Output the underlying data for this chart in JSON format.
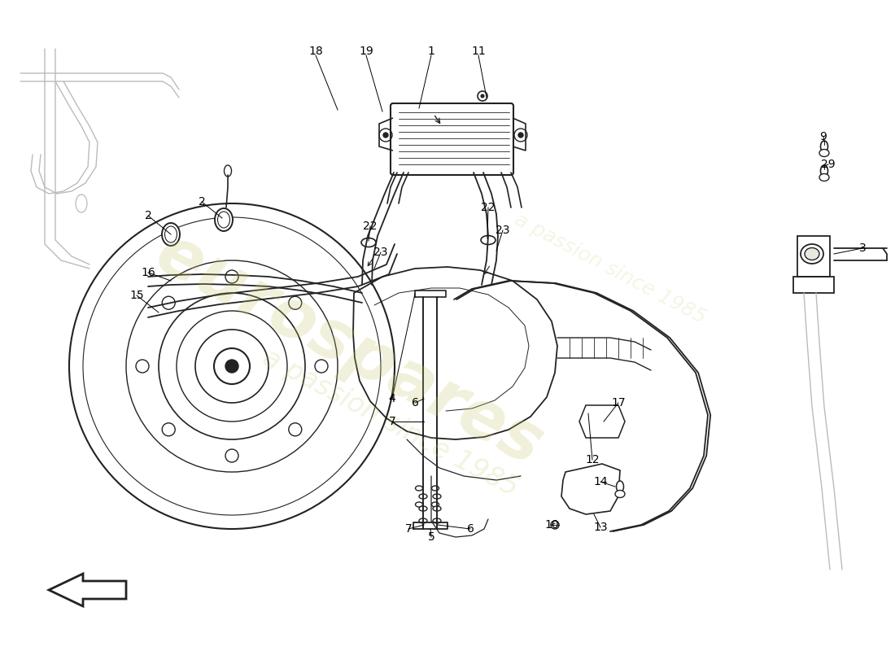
{
  "bg_color": "#ffffff",
  "line_color": "#222222",
  "light_gray": "#bbbbbb",
  "watermark1": "eurospares",
  "watermark2": "a passion since 1985",
  "fig_width": 11.0,
  "fig_height": 8.0,
  "top_labels": [
    [
      "18",
      388,
      63,
      415,
      135
    ],
    [
      "19",
      450,
      63,
      470,
      137
    ],
    [
      "1",
      530,
      63,
      515,
      133
    ],
    [
      "11",
      588,
      63,
      598,
      120
    ]
  ],
  "other_labels": [
    [
      "2",
      182,
      265,
      210,
      288
    ],
    [
      "2",
      248,
      248,
      273,
      268
    ],
    [
      "16",
      182,
      335,
      210,
      345
    ],
    [
      "15",
      168,
      363,
      195,
      384
    ],
    [
      "22",
      455,
      278,
      453,
      296
    ],
    [
      "23",
      468,
      310,
      460,
      330
    ],
    [
      "22",
      600,
      255,
      599,
      293
    ],
    [
      "23",
      618,
      283,
      610,
      308
    ],
    [
      "4",
      482,
      490,
      510,
      361
    ],
    [
      "6",
      510,
      495,
      521,
      490
    ],
    [
      "7",
      482,
      518,
      521,
      518
    ],
    [
      "6",
      578,
      650,
      538,
      645
    ],
    [
      "7",
      502,
      650,
      521,
      645
    ],
    [
      "5",
      530,
      660,
      529,
      650
    ],
    [
      "10",
      678,
      645,
      682,
      643
    ],
    [
      "13",
      738,
      648,
      730,
      632
    ],
    [
      "14",
      738,
      592,
      756,
      598
    ],
    [
      "12",
      728,
      565,
      723,
      508
    ],
    [
      "17",
      760,
      495,
      742,
      518
    ],
    [
      "9",
      1012,
      168,
      1013,
      174
    ],
    [
      "29",
      1018,
      202,
      1013,
      204
    ],
    [
      "3",
      1060,
      305,
      1025,
      312
    ]
  ]
}
